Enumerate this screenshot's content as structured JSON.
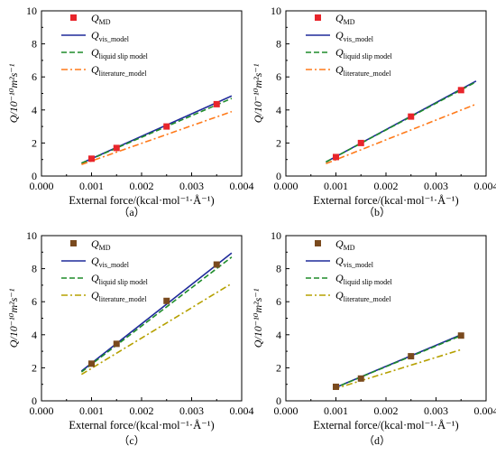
{
  "chart_data": [
    {
      "type": "line",
      "panel_label": "（a）",
      "xlabel": "External force/(kcal·mol⁻¹·Å⁻¹)",
      "ylabel": "Q/10⁻¹⁰m²s⁻¹",
      "xlim": [
        0,
        0.004
      ],
      "ylim": [
        0,
        10
      ],
      "x_ticks": [
        "0.000",
        "0.001",
        "0.002",
        "0.003",
        "0.004"
      ],
      "y_ticks": [
        "0",
        "2",
        "4",
        "6",
        "8",
        "10"
      ],
      "grid": false,
      "legend_position": "top-left",
      "series": [
        {
          "name": "Q_MD",
          "kind": "scatter",
          "marker_color": "#e8252b",
          "x": [
            0.001,
            0.0015,
            0.0025,
            0.0035
          ],
          "y": [
            1.05,
            1.7,
            3.0,
            4.35
          ]
        },
        {
          "name": "Q_vis_model",
          "kind": "line",
          "color": "#1f2a9a",
          "dash": "solid",
          "x": [
            0.0008,
            0.0038
          ],
          "y": [
            0.78,
            4.85
          ]
        },
        {
          "name": "Q_liquid slip model",
          "kind": "line",
          "color": "#1e8c2a",
          "dash": "dashed",
          "x": [
            0.0008,
            0.0038
          ],
          "y": [
            0.78,
            4.7
          ]
        },
        {
          "name": "Q_literature_model",
          "kind": "line",
          "color": "#ff7a1a",
          "dash": "dashdot",
          "x": [
            0.0008,
            0.0038
          ],
          "y": [
            0.7,
            3.9
          ]
        }
      ]
    },
    {
      "type": "line",
      "panel_label": "（b）",
      "xlabel": "External force/(kcal·mol⁻¹·Å⁻¹)",
      "ylabel": "Q/10⁻¹⁰m²s⁻¹",
      "xlim": [
        0,
        0.004
      ],
      "ylim": [
        0,
        10
      ],
      "x_ticks": [
        "0.000",
        "0.001",
        "0.002",
        "0.003",
        "0.004"
      ],
      "y_ticks": [
        "0",
        "2",
        "4",
        "6",
        "8",
        "10"
      ],
      "grid": false,
      "legend_position": "top-left",
      "series": [
        {
          "name": "Q_MD",
          "kind": "scatter",
          "marker_color": "#e8252b",
          "x": [
            0.001,
            0.0015,
            0.0025,
            0.0035
          ],
          "y": [
            1.15,
            2.0,
            3.6,
            5.2
          ]
        },
        {
          "name": "Q_vis_model",
          "kind": "line",
          "color": "#1f2a9a",
          "dash": "solid",
          "x": [
            0.0008,
            0.0038
          ],
          "y": [
            0.85,
            5.75
          ]
        },
        {
          "name": "Q_liquid slip model",
          "kind": "line",
          "color": "#1e8c2a",
          "dash": "dashed",
          "x": [
            0.0008,
            0.0038
          ],
          "y": [
            0.85,
            5.7
          ]
        },
        {
          "name": "Q_literature_model",
          "kind": "line",
          "color": "#ff7a1a",
          "dash": "dashdot",
          "x": [
            0.0008,
            0.0038
          ],
          "y": [
            0.75,
            4.35
          ]
        }
      ]
    },
    {
      "type": "line",
      "panel_label": "（c）",
      "xlabel": "External force/(kcal·mol⁻¹·Å⁻¹)",
      "ylabel": "Q/10⁻¹⁰m²s⁻¹",
      "xlim": [
        0,
        0.004
      ],
      "ylim": [
        0,
        10
      ],
      "x_ticks": [
        "0.000",
        "0.001",
        "0.002",
        "0.003",
        "0.004"
      ],
      "y_ticks": [
        "0",
        "2",
        "4",
        "6",
        "8",
        "10"
      ],
      "grid": false,
      "legend_position": "top-left",
      "series": [
        {
          "name": "Q_MD",
          "kind": "scatter",
          "marker_color": "#7a4a1e",
          "x": [
            0.001,
            0.0015,
            0.0025,
            0.0035
          ],
          "y": [
            2.25,
            3.45,
            6.05,
            8.25
          ]
        },
        {
          "name": "Q_vis_model",
          "kind": "line",
          "color": "#1f2a9a",
          "dash": "solid",
          "x": [
            0.0008,
            0.0038
          ],
          "y": [
            1.8,
            8.95
          ]
        },
        {
          "name": "Q_liquid slip model",
          "kind": "line",
          "color": "#1e8c2a",
          "dash": "dashed",
          "x": [
            0.0008,
            0.0038
          ],
          "y": [
            1.75,
            8.7
          ]
        },
        {
          "name": "Q_literature_model",
          "kind": "line",
          "color": "#b5a000",
          "dash": "dashdot",
          "x": [
            0.0008,
            0.0038
          ],
          "y": [
            1.6,
            7.1
          ]
        }
      ]
    },
    {
      "type": "line",
      "panel_label": "（d）",
      "xlabel": "External force/(kcal·mol⁻¹·Å⁻¹)",
      "ylabel": "Q/10⁻¹⁰m²s⁻¹",
      "xlim": [
        0,
        0.004
      ],
      "ylim": [
        0,
        10
      ],
      "x_ticks": [
        "0.000",
        "0.001",
        "0.002",
        "0.003",
        "0.004"
      ],
      "y_ticks": [
        "0",
        "2",
        "4",
        "6",
        "8",
        "10"
      ],
      "grid": false,
      "legend_position": "top-left",
      "series": [
        {
          "name": "Q_MD",
          "kind": "scatter",
          "marker_color": "#7a4a1e",
          "x": [
            0.001,
            0.0015,
            0.0025,
            0.0035
          ],
          "y": [
            0.85,
            1.35,
            2.7,
            3.95
          ]
        },
        {
          "name": "Q_vis_model",
          "kind": "line",
          "color": "#1f2a9a",
          "dash": "solid",
          "x": [
            0.00095,
            0.0035
          ],
          "y": [
            0.75,
            4.0
          ]
        },
        {
          "name": "Q_liquid slip model",
          "kind": "line",
          "color": "#1e8c2a",
          "dash": "dashed",
          "x": [
            0.00095,
            0.0035
          ],
          "y": [
            0.75,
            3.95
          ]
        },
        {
          "name": "Q_literature_model",
          "kind": "line",
          "color": "#b5a000",
          "dash": "dashdot",
          "x": [
            0.00095,
            0.0035
          ],
          "y": [
            0.7,
            3.1
          ]
        }
      ]
    }
  ]
}
